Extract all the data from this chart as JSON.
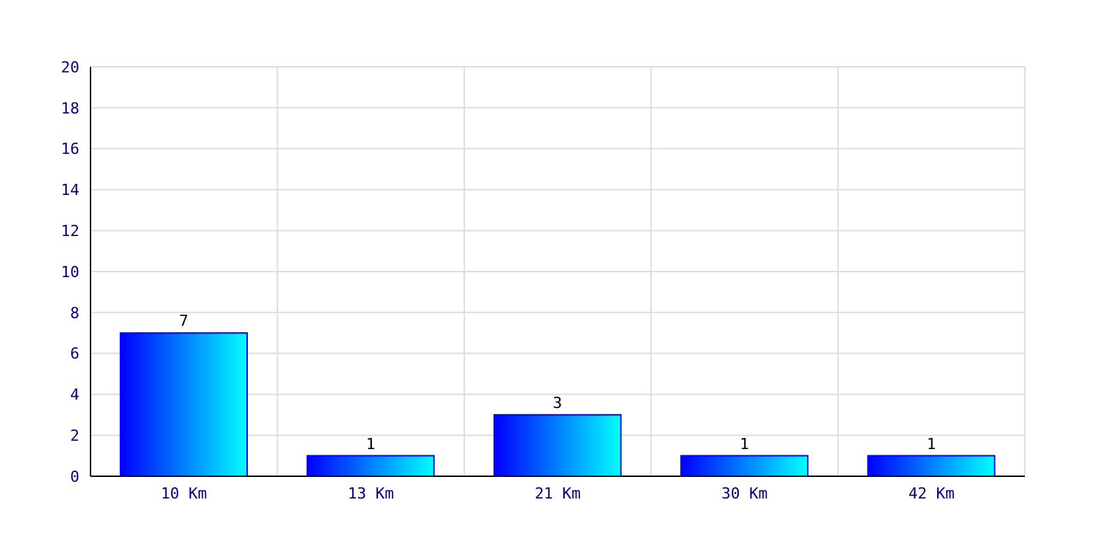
{
  "chart_data": {
    "type": "bar",
    "categories": [
      "10 Km",
      "13 Km",
      "21 Km",
      "30 Km",
      "42 Km"
    ],
    "values": [
      7,
      1,
      3,
      1,
      1
    ],
    "color": "#0000ff",
    "ylim": [
      0,
      20
    ],
    "yticks": [
      0,
      2,
      4,
      6,
      8,
      10,
      12,
      14,
      16,
      18,
      20
    ],
    "grid": true,
    "data_labels": true
  }
}
